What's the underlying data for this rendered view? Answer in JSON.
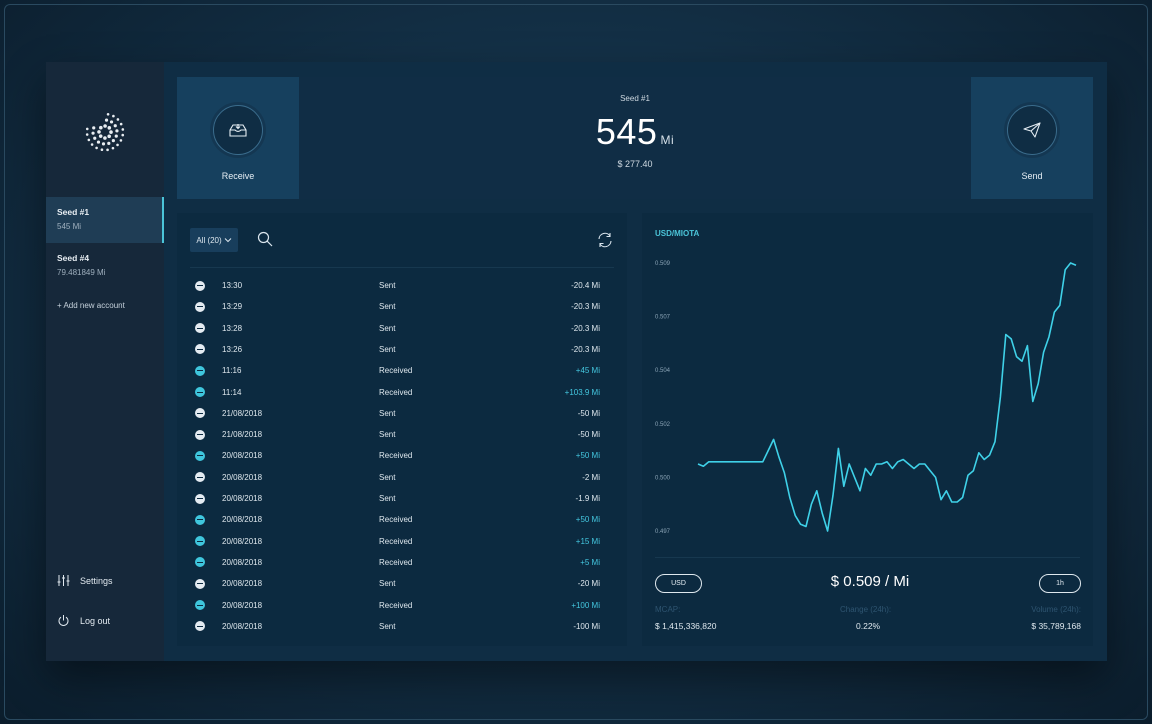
{
  "colors": {
    "accent": "#4bc4d8",
    "received": "#44c7df",
    "sent": "#e4ebf1",
    "panel": "#0c2a40",
    "sidebar": "#16283a"
  },
  "window_controls": [
    "#e25b4f",
    "#e9b43c",
    "#57c038"
  ],
  "sidebar": {
    "logo": "iota-logo",
    "accounts": [
      {
        "name": "Seed #1",
        "balance": "545 Mi",
        "active": true
      },
      {
        "name": "Seed #4",
        "balance": "79.481849 Mi",
        "active": false
      }
    ],
    "add_account": "+ Add new account",
    "settings_label": "Settings",
    "settings_icon": "sliders-icon",
    "logout_label": "Log out",
    "logout_icon": "power-icon"
  },
  "header": {
    "receive_label": "Receive",
    "receive_icon": "inbox-icon",
    "send_label": "Send",
    "send_icon": "paper-plane-icon",
    "seed_name": "Seed #1",
    "balance_value": "545",
    "balance_unit": "Mi",
    "balance_usd": "$ 277.40"
  },
  "history": {
    "filter_label": "All (20)",
    "filter_icon": "chevron-down-icon",
    "search_icon": "search-icon",
    "refresh_icon": "refresh-icon",
    "transactions": [
      {
        "time": "13:30",
        "type": "Sent",
        "amount": "-20.4 Mi"
      },
      {
        "time": "13:29",
        "type": "Sent",
        "amount": "-20.3 Mi"
      },
      {
        "time": "13:28",
        "type": "Sent",
        "amount": "-20.3 Mi"
      },
      {
        "time": "13:26",
        "type": "Sent",
        "amount": "-20.3 Mi"
      },
      {
        "time": "11:16",
        "type": "Received",
        "amount": "+45 Mi"
      },
      {
        "time": "11:14",
        "type": "Received",
        "amount": "+103.9 Mi"
      },
      {
        "time": "21/08/2018",
        "type": "Sent",
        "amount": "-50 Mi"
      },
      {
        "time": "21/08/2018",
        "type": "Sent",
        "amount": "-50 Mi"
      },
      {
        "time": "20/08/2018",
        "type": "Received",
        "amount": "+50 Mi"
      },
      {
        "time": "20/08/2018",
        "type": "Sent",
        "amount": "-2 Mi"
      },
      {
        "time": "20/08/2018",
        "type": "Sent",
        "amount": "-1.9 Mi"
      },
      {
        "time": "20/08/2018",
        "type": "Received",
        "amount": "+50 Mi"
      },
      {
        "time": "20/08/2018",
        "type": "Received",
        "amount": "+15 Mi"
      },
      {
        "time": "20/08/2018",
        "type": "Received",
        "amount": "+5 Mi"
      },
      {
        "time": "20/08/2018",
        "type": "Sent",
        "amount": "-20 Mi"
      },
      {
        "time": "20/08/2018",
        "type": "Received",
        "amount": "+100 Mi"
      },
      {
        "time": "20/08/2018",
        "type": "Sent",
        "amount": "-100 Mi"
      }
    ]
  },
  "market": {
    "pair_label": "USD/MIOTA",
    "currency_button": "USD",
    "timeframe_button": "1h",
    "price": "$ 0.509 / Mi",
    "mcap_label": "MCAP:",
    "mcap_value": "$ 1,415,336,820",
    "change_label": "Change (24h):",
    "change_value": "0.22%",
    "volume_label": "Volume (24h):",
    "volume_value": "$ 35,789,168"
  },
  "chart_data": {
    "type": "line",
    "title": "USD/MIOTA",
    "y_ticks": [
      "0.509",
      "0.507",
      "0.504",
      "0.502",
      "0.500",
      "0.497"
    ],
    "ylim": [
      0.497,
      0.509
    ],
    "grid": false,
    "series": [
      {
        "values": [
          0.5,
          0.4999,
          0.5001,
          0.5001,
          0.5001,
          0.5001,
          0.5001,
          0.5001,
          0.5001,
          0.5001,
          0.5001,
          0.5001,
          0.5001,
          0.5006,
          0.5011,
          0.5003,
          0.4996,
          0.4985,
          0.4977,
          0.4973,
          0.4972,
          0.4982,
          0.4988,
          0.4978,
          0.497,
          0.4986,
          0.5007,
          0.499,
          0.5,
          0.4994,
          0.4988,
          0.4998,
          0.4995,
          0.5,
          0.5,
          0.5001,
          0.4998,
          0.5001,
          0.5002,
          0.5,
          0.4998,
          0.5,
          0.5,
          0.4997,
          0.4994,
          0.4984,
          0.4988,
          0.4983,
          0.4983,
          0.4985,
          0.4995,
          0.4997,
          0.5005,
          0.5002,
          0.5004,
          0.501,
          0.503,
          0.5058,
          0.5056,
          0.5048,
          0.5046,
          0.5053,
          0.5028,
          0.5036,
          0.505,
          0.5057,
          0.5068,
          0.5071,
          0.5087,
          0.509,
          0.5089
        ],
        "color": "#3fd1e8"
      }
    ]
  }
}
